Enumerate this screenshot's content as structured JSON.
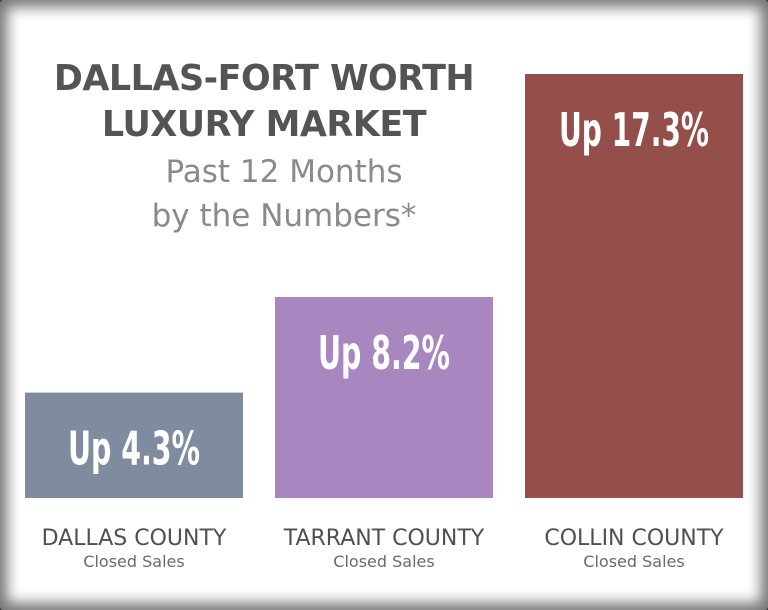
{
  "chart_data": {
    "type": "bar",
    "title": "DALLAS-FORT WORTH LUXURY MARKET",
    "subtitle": "Past 12 Months by the Numbers*",
    "title_lines": [
      "DALLAS-FORT WORTH",
      "LUXURY MARKET"
    ],
    "subtitle_lines": [
      "Past 12 Months",
      "by the Numbers*"
    ],
    "categories": [
      "DALLAS COUNTY",
      "TARRANT COUNTY",
      "COLLIN COUNTY"
    ],
    "category_sublabels": [
      "Closed Sales",
      "Closed Sales",
      "Closed Sales"
    ],
    "values": [
      4.3,
      8.2,
      17.3
    ],
    "data_labels": [
      "Up 4.3%",
      "Up 8.2%",
      "Up 17.3%"
    ],
    "colors": [
      "#7f8ca0",
      "#a886bf",
      "#944f4a"
    ],
    "ylim": [
      0,
      17.3
    ],
    "grid": false,
    "legend": "none"
  }
}
